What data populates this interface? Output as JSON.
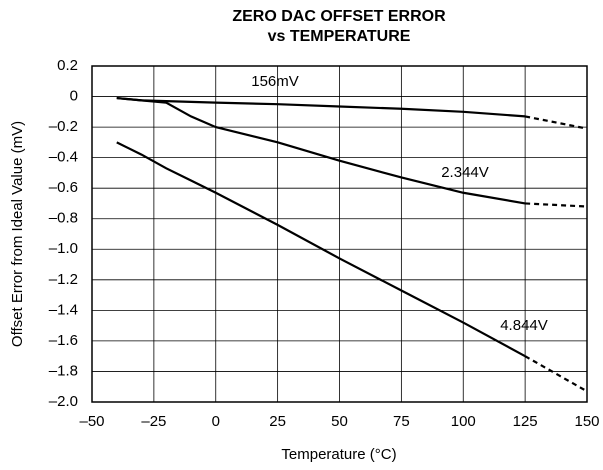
{
  "chart_data": {
    "type": "line",
    "title": [
      "ZERO DAC OFFSET ERROR",
      "vs TEMPERATURE"
    ],
    "xlabel": "Temperature (°C)",
    "ylabel": "Offset Error from Ideal Value (mV)",
    "x": [
      -40,
      -30,
      -20,
      -10,
      0,
      25,
      50,
      75,
      100,
      125,
      150
    ],
    "dashed_after": 125,
    "series": [
      {
        "name": "156mV",
        "color": "#000000",
        "values": [
          -0.01,
          -0.025,
          -0.03,
          -0.035,
          -0.04,
          -0.05,
          -0.065,
          -0.08,
          -0.1,
          -0.13,
          -0.21
        ]
      },
      {
        "name": "2.344V",
        "color": "#000000",
        "values": [
          -0.01,
          -0.025,
          -0.04,
          -0.13,
          -0.2,
          -0.3,
          -0.42,
          -0.53,
          -0.63,
          -0.7,
          -0.72
        ]
      },
      {
        "name": "4.844V",
        "color": "#000000",
        "values": [
          -0.3,
          -0.38,
          -0.47,
          -0.55,
          -0.63,
          -0.84,
          -1.06,
          -1.27,
          -1.48,
          -1.7,
          -1.93
        ]
      }
    ],
    "xlim": [
      -50,
      150
    ],
    "xticks": [
      {
        "value": -50,
        "label": "–50"
      },
      {
        "value": -25,
        "label": "–25"
      },
      0,
      25,
      50,
      75,
      100,
      125,
      150
    ],
    "ylim": [
      -2.0,
      0.2
    ],
    "yticks": [
      0.2,
      0,
      {
        "value": -0.2,
        "label": "–0.2"
      },
      {
        "value": -0.4,
        "label": "–0.4"
      },
      {
        "value": -0.6,
        "label": "–0.6"
      },
      {
        "value": -0.8,
        "label": "–0.8"
      },
      {
        "value": -1.0,
        "label": "–1.0"
      },
      {
        "value": -1.2,
        "label": "–1.2"
      },
      {
        "value": -1.4,
        "label": "–1.4"
      },
      {
        "value": -1.6,
        "label": "–1.6"
      },
      {
        "value": -1.8,
        "label": "–1.8"
      },
      {
        "value": -2.0,
        "label": "–2.0"
      }
    ],
    "grid": true
  }
}
